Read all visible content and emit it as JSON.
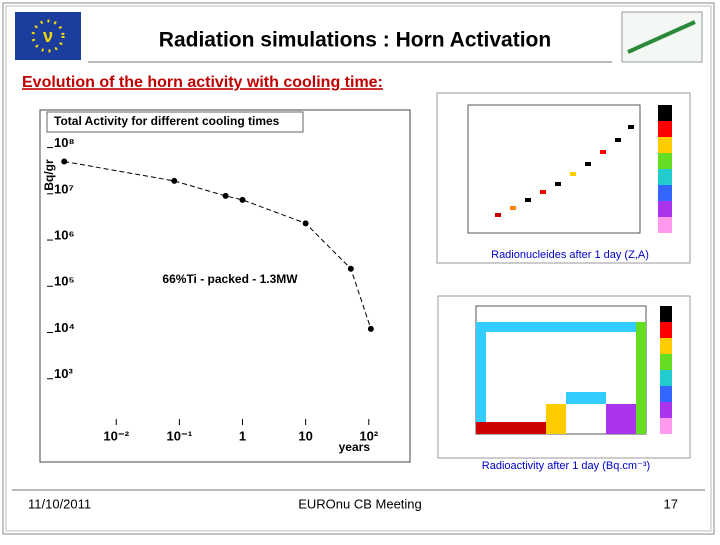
{
  "slide": {
    "title": "Radiation simulations : Horn Activation",
    "subtitle": "Evolution of the horn activity with cooling time:",
    "caption_top": "Radionucleides after 1 day (Z,A)",
    "caption_bottom": "Radioactivity after 1 day (Bq.cm⁻³)",
    "footer_date": "11/10/2011",
    "footer_meeting": "EUROnu CB Meeting",
    "footer_page": "17"
  },
  "chart_data": {
    "type": "scatter-line",
    "title": "Total Activity for different cooling times",
    "annotation": "66%Ti - packed - 1.3MW",
    "x_label": "years",
    "y_label": "Bq/gr",
    "log_x": true,
    "log_y": true,
    "color": "#000000",
    "x": [
      0.0015,
      0.083,
      0.54,
      1,
      10,
      52,
      108
    ],
    "values": [
      50000000,
      19000000,
      9000000,
      7400000,
      2300000,
      240000,
      12000
    ],
    "xlim": [
      0.0008,
      450
    ],
    "ylim": [
      100,
      240000000
    ],
    "xticks": [
      {
        "value": 0.01,
        "label": "10⁻²"
      },
      {
        "value": 0.1,
        "label": "10⁻¹"
      },
      1,
      10,
      {
        "value": 100,
        "label": "10²"
      }
    ],
    "yticks": [
      {
        "value": 1000,
        "label": "10³"
      },
      {
        "value": 10000,
        "label": "10⁴"
      },
      {
        "value": 100000,
        "label": "10⁵"
      },
      {
        "value": 1000000,
        "label": "10⁶"
      },
      {
        "value": 10000000,
        "label": "10⁷"
      },
      {
        "value": 100000000,
        "label": "10⁸"
      }
    ]
  }
}
